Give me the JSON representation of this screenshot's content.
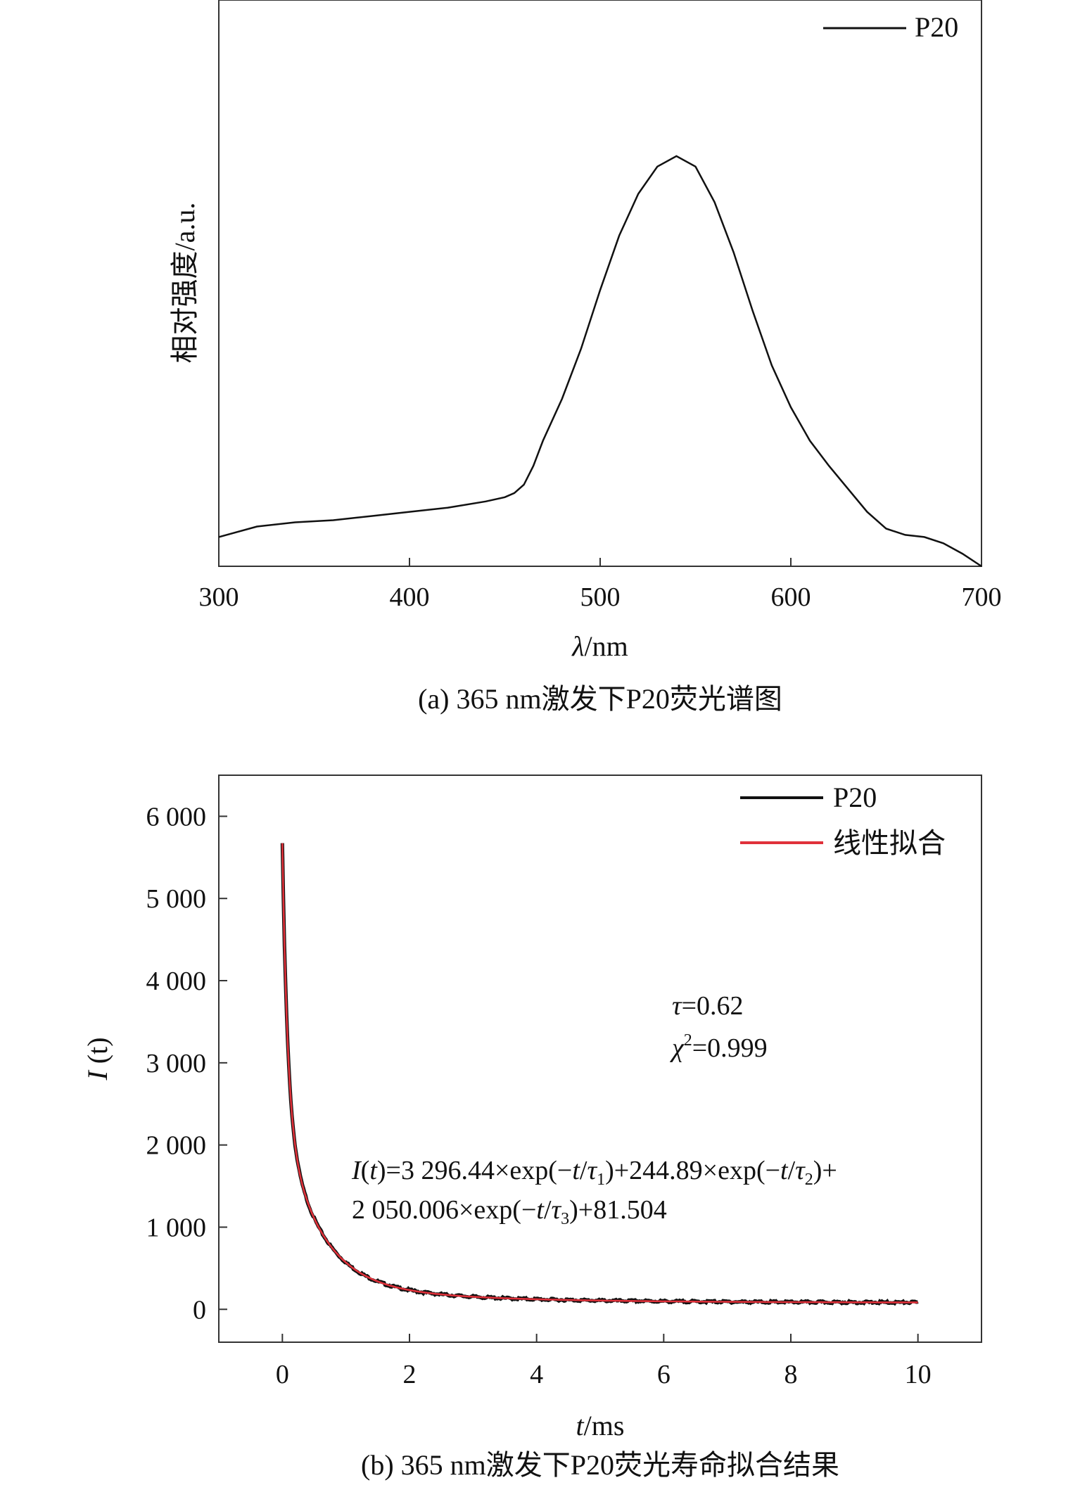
{
  "chart_data": [
    {
      "type": "line",
      "caption": "(a) 365 nm激发下P20荧光谱图",
      "xlabel_italic": "λ",
      "xlabel_rest": "/nm",
      "ylabel": "相对强度/a.u.",
      "xlim": [
        300,
        700
      ],
      "ylim": [
        0,
        1
      ],
      "xticks": [
        300,
        400,
        500,
        600,
        700
      ],
      "xtick_labels": [
        "300",
        "400",
        "500",
        "600",
        "700"
      ],
      "y_tick_labels_shown": false,
      "grid": false,
      "legend_position": "top-right",
      "series": [
        {
          "name": "P20",
          "color": "#111111",
          "x": [
            300,
            320,
            340,
            360,
            380,
            400,
            420,
            440,
            450,
            455,
            460,
            465,
            470,
            480,
            490,
            500,
            510,
            520,
            530,
            540,
            550,
            560,
            570,
            580,
            590,
            600,
            610,
            620,
            630,
            640,
            650,
            660,
            670,
            680,
            690,
            700
          ],
          "y": [
            0.07,
            0.095,
            0.105,
            0.11,
            0.12,
            0.13,
            0.14,
            0.155,
            0.165,
            0.175,
            0.195,
            0.24,
            0.3,
            0.4,
            0.52,
            0.66,
            0.79,
            0.89,
            0.955,
            0.98,
            0.955,
            0.87,
            0.75,
            0.61,
            0.48,
            0.38,
            0.3,
            0.24,
            0.185,
            0.13,
            0.09,
            0.075,
            0.07,
            0.055,
            0.03,
            0.0
          ]
        }
      ]
    },
    {
      "type": "line",
      "caption": "(b) 365 nm激发下P20荧光寿命拟合结果",
      "xlabel_italic": "t",
      "xlabel_rest": "/ms",
      "ylabel_italic": "I",
      "ylabel_rest": " (t)",
      "xlim": [
        -1,
        11
      ],
      "ylim": [
        -400,
        6500
      ],
      "xticks": [
        0,
        2,
        4,
        6,
        8,
        10
      ],
      "xtick_labels": [
        "0",
        "2",
        "4",
        "6",
        "8",
        "10"
      ],
      "yticks": [
        0,
        1000,
        2000,
        3000,
        4000,
        5000,
        6000
      ],
      "ytick_labels": [
        "0",
        "1 000",
        "2 000",
        "3 000",
        "4 000",
        "5 000",
        "6 000"
      ],
      "grid": false,
      "legend_position": "top-right",
      "series": [
        {
          "name": "P20",
          "color": "#111111"
        },
        {
          "name": "线性拟合",
          "color": "#e0313a"
        }
      ],
      "fit_model": {
        "A1": 3296.44,
        "A2": 244.89,
        "A3": 2050.006,
        "C": 81.504,
        "x_start": 0,
        "x_end": 10
      },
      "annotations": {
        "tau_sym": "τ",
        "tau_val": "=0.62",
        "chi_sym": "χ",
        "chi_sup": "2",
        "chi_val": "=0.999",
        "eq_line1": {
          "I": "I",
          "open_t": "(",
          "t1": "t",
          "close1": ")=3 296.44×exp(−",
          "t2": "t",
          "slash1": "/",
          "tau1": "τ",
          "sub1": "1",
          "mid1": ")+244.89×exp(−",
          "t3": "t",
          "slash2": "/",
          "tau2": "τ",
          "sub2": "2",
          "end1": ")+"
        },
        "eq_line2": {
          "start": "2 050.006×exp(−",
          "t4": "t",
          "slash3": "/",
          "tau3": "τ",
          "sub3": "3",
          "end2": ")+81.504"
        }
      }
    }
  ]
}
